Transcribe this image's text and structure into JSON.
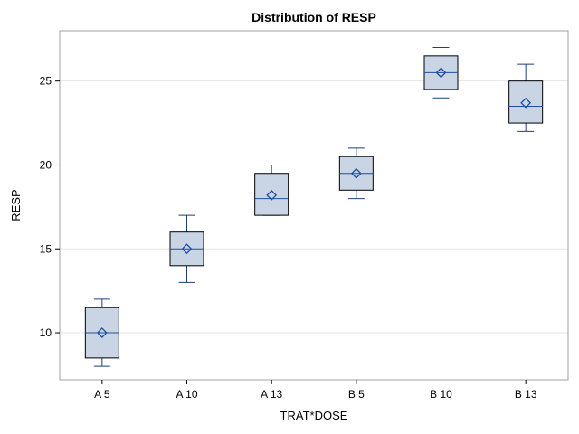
{
  "chart_data": {
    "type": "box",
    "title": "Distribution of RESP",
    "xlabel": "TRAT*DOSE",
    "ylabel": "RESP",
    "ylim": [
      7.2,
      28.0
    ],
    "yticks": [
      10,
      15,
      20,
      25
    ],
    "categories": [
      "A 5",
      "A 10",
      "A 13",
      "B 5",
      "B 10",
      "B 13"
    ],
    "boxes": [
      {
        "min": 8,
        "q1": 8.5,
        "median": 10,
        "q3": 11.5,
        "max": 12,
        "mean": 10
      },
      {
        "min": 13,
        "q1": 14,
        "median": 15,
        "q3": 16,
        "max": 17,
        "mean": 15
      },
      {
        "min": 17,
        "q1": 17,
        "median": 18,
        "q3": 19.5,
        "max": 20,
        "mean": 18.2
      },
      {
        "min": 18,
        "q1": 18.5,
        "median": 19.5,
        "q3": 20.5,
        "max": 21,
        "mean": 19.5
      },
      {
        "min": 24,
        "q1": 24.5,
        "median": 25.5,
        "q3": 26.5,
        "max": 27,
        "mean": 25.5
      },
      {
        "min": 22,
        "q1": 22.5,
        "median": 23.5,
        "q3": 25,
        "max": 26,
        "mean": 23.7
      }
    ],
    "grid": true,
    "colors": {
      "box_fill": "#c9d4e4",
      "box_border": "#000000",
      "whisker": "#1f3f7a",
      "median": "#1f4fa0",
      "mean_marker": "#1f4fa0",
      "grid": "#e6e6e6"
    }
  }
}
